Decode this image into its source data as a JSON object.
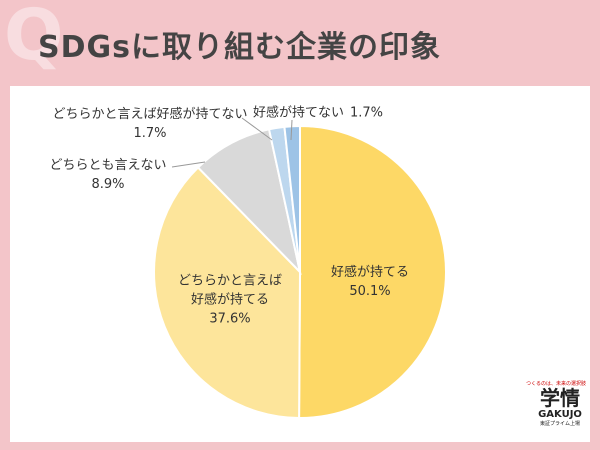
{
  "chart_data": {
    "type": "pie",
    "title": "SDGsに取り組む企業の印象",
    "title_mark": "Q",
    "categories": [
      "好感が持てる",
      "どちらかと言えば好感が持てる",
      "どちらとも言えない",
      "どちらかと言えば好感が持てない",
      "好感が持てない"
    ],
    "values": [
      50.1,
      37.6,
      8.9,
      1.7,
      1.7
    ],
    "value_labels": [
      "50.1%",
      "37.6%",
      "8.9%",
      "1.7%",
      "1.7%"
    ],
    "colors": [
      "#fdd866",
      "#fde59b",
      "#d9d9d9",
      "#bdd7ee",
      "#9dc3e6"
    ],
    "logo": {
      "tagline": "つくるのは、未来の選択肢",
      "name": "学情",
      "romaji": "GAKUJO",
      "note": "東証プライム上場"
    }
  }
}
